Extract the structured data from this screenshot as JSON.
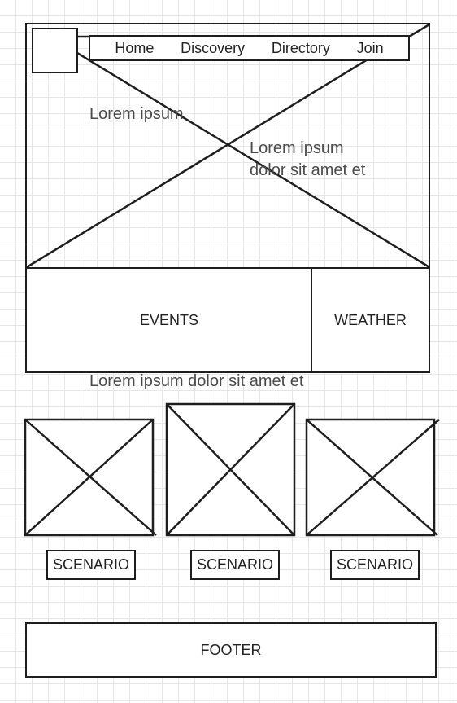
{
  "nav": {
    "items": [
      "Home",
      "Discovery",
      "Directory",
      "Join"
    ]
  },
  "hero": {
    "text_left": "Lorem ipsum",
    "text_right_line1": "Lorem ipsum",
    "text_right_line2": "dolor sit amet et"
  },
  "panels": {
    "events_label": "EVENTS",
    "weather_label": "WEATHER"
  },
  "section_caption": "Lorem ipsum dolor sit amet et",
  "scenarios": [
    {
      "label": "SCENARIO"
    },
    {
      "label": "SCENARIO"
    },
    {
      "label": "SCENARIO"
    }
  ],
  "footer": {
    "label": "FOOTER"
  },
  "colors": {
    "stroke": "#1e1e1e",
    "grid": "#e6e6e6",
    "placeholder_text": "#4a4a4a"
  }
}
